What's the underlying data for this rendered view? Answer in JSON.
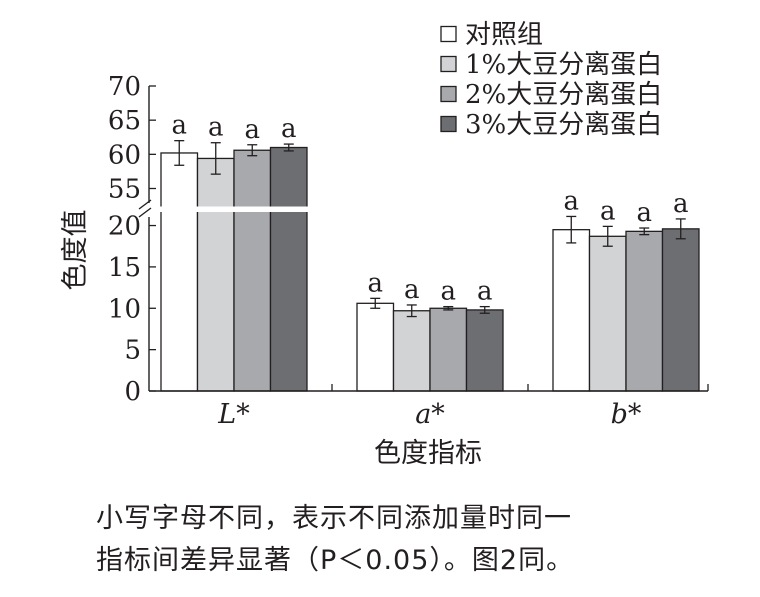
{
  "chart_data": {
    "type": "bar",
    "xlabel": "色度指标",
    "ylabel": "色度值",
    "categories": [
      "L*",
      "a*",
      "b*"
    ],
    "axis_break": {
      "lower": [
        0,
        22
      ],
      "upper": [
        52,
        70
      ]
    },
    "yticks_lower": [
      "0",
      "5",
      "10",
      "15",
      "20"
    ],
    "yticks_upper": [
      "55",
      "60",
      "65",
      "70"
    ],
    "legend_position": "top-right",
    "series": [
      {
        "name": "对照组",
        "color": "#ffffff",
        "values": [
          60.2,
          10.6,
          19.5
        ],
        "errors": [
          1.8,
          0.6,
          1.6
        ],
        "labels": [
          "a",
          "a",
          "a"
        ]
      },
      {
        "name": "1%大豆分离蛋白",
        "color": "#d1d3d4",
        "values": [
          59.4,
          9.7,
          18.7
        ],
        "errors": [
          2.3,
          0.7,
          1.2
        ],
        "labels": [
          "a",
          "a",
          "a"
        ]
      },
      {
        "name": "2%大豆分离蛋白",
        "color": "#a7a9ac",
        "values": [
          60.6,
          10.0,
          19.3
        ],
        "errors": [
          0.8,
          0.2,
          0.4
        ],
        "labels": [
          "a",
          "a",
          "a"
        ]
      },
      {
        "name": "3%大豆分离蛋白",
        "color": "#6d6e71",
        "values": [
          61.0,
          9.8,
          19.6
        ],
        "errors": [
          0.5,
          0.4,
          1.2
        ],
        "labels": [
          "a",
          "a",
          "a"
        ]
      }
    ]
  },
  "caption": {
    "line1": "小写字母不同，表示不同添加量时同一",
    "line2": "指标间差异显著（P＜0.05）。图2同。"
  }
}
